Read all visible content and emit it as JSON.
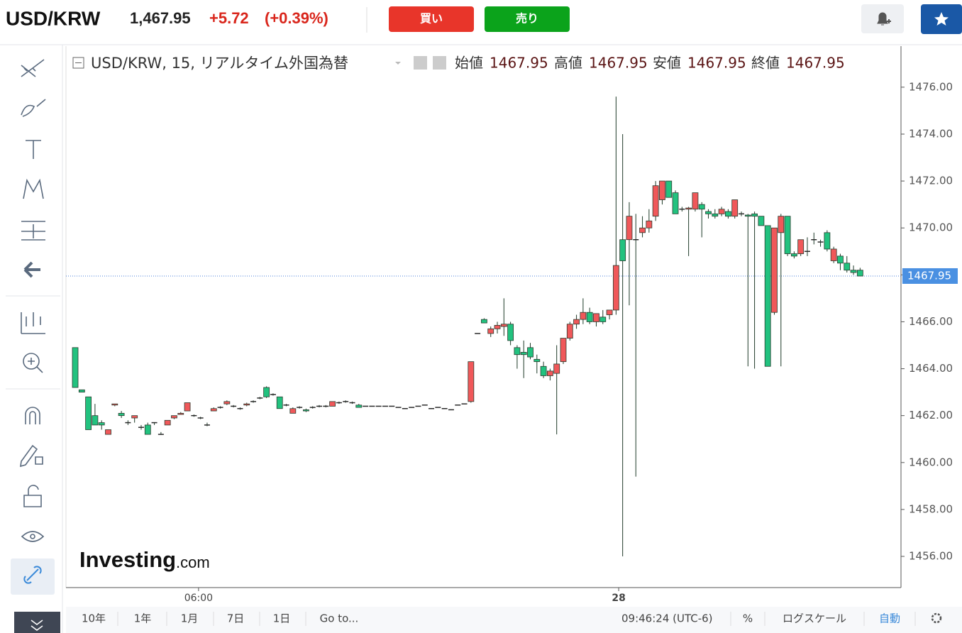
{
  "header": {
    "symbol": "USD/KRW",
    "price": "1,467.95",
    "change": "+5.72",
    "change_pct": "(+0.39%)",
    "buy": "買い",
    "sell": "売り"
  },
  "chart_data": {
    "type": "candlestick",
    "title": "USD/KRW, 15, リアルタイム外国為替",
    "ohlc_legend": [
      {
        "label": "始値",
        "value": 1467.95
      },
      {
        "label": "高値",
        "value": 1467.95
      },
      {
        "label": "安値",
        "value": 1467.95
      },
      {
        "label": "終値",
        "value": 1467.95
      }
    ],
    "open": [
      1464.9,
      1463.1,
      1462.8,
      1462.0,
      1461.7,
      1461.2,
      1462.45,
      1462.1,
      1461.7,
      1461.9,
      1461.5,
      1461.6,
      1461.7,
      1461.2,
      1461.6,
      1461.9,
      1462.05,
      1462.2,
      1462.0,
      1461.9,
      1461.6,
      1462.2,
      1462.35,
      1462.5,
      1462.4,
      1462.3,
      1462.45,
      1462.6,
      1462.75,
      1463.2,
      1462.9,
      1462.8,
      1462.45,
      1462.1,
      1462.35,
      1462.25,
      1462.35,
      1462.4,
      1462.4,
      1462.4,
      1462.55,
      1462.6,
      1462.55,
      1462.45,
      1462.4,
      1462.4,
      1462.4,
      1462.4,
      1462.4,
      1462.35,
      1462.3,
      1462.35,
      1462.4,
      1462.45,
      1462.3,
      1462.35,
      1462.3,
      1462.25,
      1462.45,
      1462.5,
      1462.6,
      1465.5,
      1466.1,
      1465.5,
      1465.7,
      1465.8,
      1465.9,
      1464.9,
      1464.7,
      1464.9,
      1464.4,
      1464.1,
      1463.7,
      1463.8,
      1464.3,
      1465.3,
      1465.9,
      1466.1,
      1466.4,
      1466.0,
      1466.2,
      1466.3,
      1466.5,
      1469.5,
      1469.5,
      1469.5,
      1469.8,
      1470.0,
      1470.5,
      1471.2,
      1472.0,
      1471.5,
      1470.8,
      1470.8,
      1470.8,
      1471.0,
      1470.7,
      1470.6,
      1470.6,
      1470.7,
      1470.5,
      1470.6,
      1470.55,
      1470.6,
      1470.5,
      1470.1,
      1466.4,
      1469.8,
      1470.5,
      1468.9,
      1468.9,
      1469.0,
      1469.5,
      1469.4,
      1469.8,
      1468.6,
      1468.8,
      1468.5,
      1468.2,
      1468.2
    ],
    "high": [
      1464.9,
      1463.1,
      1462.8,
      1462.5,
      1461.8,
      1461.4,
      1462.5,
      1462.2,
      1461.8,
      1462.0,
      1461.6,
      1461.7,
      1461.7,
      1461.3,
      1461.8,
      1462.0,
      1462.15,
      1462.55,
      1462.05,
      1461.95,
      1461.7,
      1462.35,
      1462.4,
      1462.65,
      1462.45,
      1462.35,
      1462.55,
      1462.65,
      1462.8,
      1463.25,
      1462.95,
      1462.8,
      1462.5,
      1462.35,
      1462.4,
      1462.3,
      1462.4,
      1462.45,
      1462.45,
      1462.6,
      1462.6,
      1462.65,
      1462.6,
      1462.5,
      1462.4,
      1462.4,
      1462.4,
      1462.4,
      1462.4,
      1462.35,
      1462.3,
      1462.35,
      1462.4,
      1462.45,
      1462.3,
      1462.35,
      1462.3,
      1462.25,
      1462.45,
      1462.5,
      1464.3,
      1465.5,
      1466.15,
      1465.8,
      1466.0,
      1467.0,
      1466.0,
      1465.0,
      1465.2,
      1465.1,
      1464.6,
      1464.3,
      1464.0,
      1465.0,
      1465.3,
      1466.0,
      1466.3,
      1467.0,
      1466.6,
      1466.3,
      1466.5,
      1466.5,
      1475.6,
      1474.0,
      1471.1,
      1470.6,
      1470.5,
      1470.8,
      1472.0,
      1472.0,
      1472.0,
      1471.6,
      1470.9,
      1470.9,
      1471.5,
      1471.1,
      1470.8,
      1470.8,
      1470.9,
      1470.8,
      1471.2,
      1470.7,
      1470.6,
      1470.7,
      1470.5,
      1470.1,
      1470.0,
      1470.6,
      1470.5,
      1469.0,
      1469.5,
      1469.6,
      1469.8,
      1469.5,
      1469.9,
      1469.2,
      1468.9,
      1468.8,
      1468.4,
      1468.3
    ],
    "low": [
      1463.2,
      1463.0,
      1461.4,
      1461.6,
      1461.4,
      1461.2,
      1462.4,
      1461.9,
      1461.6,
      1461.7,
      1461.4,
      1461.2,
      1461.6,
      1461.2,
      1461.6,
      1461.85,
      1462.05,
      1462.2,
      1461.95,
      1461.85,
      1461.55,
      1462.2,
      1462.3,
      1462.45,
      1462.35,
      1462.25,
      1462.4,
      1462.55,
      1462.7,
      1462.75,
      1462.85,
      1462.3,
      1462.4,
      1462.1,
      1462.3,
      1462.15,
      1462.3,
      1462.35,
      1462.35,
      1462.4,
      1462.5,
      1462.55,
      1462.5,
      1462.35,
      1462.4,
      1462.4,
      1462.4,
      1462.4,
      1462.4,
      1462.35,
      1462.3,
      1462.35,
      1462.4,
      1462.45,
      1462.3,
      1462.35,
      1462.3,
      1462.25,
      1462.45,
      1462.5,
      1462.55,
      1465.5,
      1465.95,
      1465.35,
      1465.5,
      1465.4,
      1465.0,
      1464.0,
      1463.6,
      1464.4,
      1463.8,
      1463.6,
      1463.5,
      1461.2,
      1464.2,
      1465.2,
      1465.7,
      1465.9,
      1465.9,
      1465.8,
      1465.9,
      1466.1,
      1466.3,
      1456.0,
      1466.7,
      1459.4,
      1469.6,
      1469.8,
      1470.3,
      1471.0,
      1471.3,
      1470.6,
      1470.7,
      1468.8,
      1470.7,
      1469.6,
      1470.4,
      1470.4,
      1470.5,
      1470.4,
      1470.4,
      1470.5,
      1464.1,
      1464.0,
      1470.1,
      1464.1,
      1466.3,
      1464.1,
      1468.8,
      1468.7,
      1468.8,
      1468.8,
      1469.3,
      1469.2,
      1469.0,
      1468.5,
      1468.2,
      1468.1,
      1468.0,
      1467.95
    ],
    "close": [
      1463.2,
      1463.0,
      1461.4,
      1461.6,
      1461.6,
      1461.4,
      1462.5,
      1462.0,
      1461.7,
      1462.0,
      1461.5,
      1461.2,
      1461.7,
      1461.2,
      1461.8,
      1462.0,
      1462.1,
      1462.55,
      1462.0,
      1461.9,
      1461.6,
      1462.3,
      1462.35,
      1462.6,
      1462.4,
      1462.3,
      1462.5,
      1462.6,
      1462.75,
      1462.8,
      1462.9,
      1462.3,
      1462.45,
      1462.3,
      1462.35,
      1462.2,
      1462.35,
      1462.4,
      1462.4,
      1462.6,
      1462.55,
      1462.6,
      1462.55,
      1462.35,
      1462.4,
      1462.4,
      1462.4,
      1462.4,
      1462.4,
      1462.35,
      1462.3,
      1462.35,
      1462.4,
      1462.45,
      1462.3,
      1462.35,
      1462.3,
      1462.25,
      1462.45,
      1462.5,
      1464.3,
      1465.5,
      1465.95,
      1465.7,
      1465.85,
      1465.9,
      1465.2,
      1464.6,
      1464.6,
      1464.5,
      1464.3,
      1463.7,
      1463.9,
      1464.2,
      1465.3,
      1465.9,
      1466.1,
      1466.4,
      1466.0,
      1466.35,
      1466.0,
      1466.5,
      1468.4,
      1468.6,
      1470.5,
      1469.5,
      1470.0,
      1470.3,
      1471.8,
      1472.0,
      1471.3,
      1470.6,
      1470.8,
      1470.85,
      1471.5,
      1470.8,
      1470.6,
      1470.5,
      1470.8,
      1470.5,
      1471.2,
      1470.6,
      1470.5,
      1470.5,
      1470.1,
      1464.1,
      1470.0,
      1470.5,
      1468.9,
      1468.8,
      1469.5,
      1469.0,
      1469.5,
      1469.4,
      1469.1,
      1469.1,
      1468.5,
      1468.2,
      1468.1,
      1467.95
    ],
    "up_color": "#f0585a",
    "down_color": "#22c27f",
    "last_price": 1467.95,
    "ylim": [
      1454.67,
      1477.75
    ],
    "yticks": [
      {
        "value": 1456,
        "label": "1456.00"
      },
      {
        "value": 1458,
        "label": "1458.00"
      },
      {
        "value": 1460,
        "label": "1460.00"
      },
      {
        "value": 1462,
        "label": "1462.00"
      },
      {
        "value": 1464,
        "label": "1464.00"
      },
      {
        "value": 1466,
        "label": "1466.00"
      },
      {
        "value": 1468,
        "label": "1468.00"
      },
      {
        "value": 1470,
        "label": "1470.00"
      },
      {
        "value": 1472,
        "label": "1472.00"
      },
      {
        "value": 1474,
        "label": "1474.00"
      },
      {
        "value": 1476,
        "label": "1476.00"
      }
    ],
    "xlim": [
      -1.4,
      125.2
    ],
    "xticks": [
      {
        "value": 18.7,
        "label": "06:00"
      },
      {
        "value": 82.4,
        "label": "28"
      }
    ],
    "watermark": "Investing",
    "watermark_suffix": ".com"
  },
  "footer": {
    "ranges": [
      "10年",
      "1年",
      "1月",
      "7日",
      "1日",
      "Go to..."
    ],
    "time": "09:46:24 (UTC-6)",
    "percent": "%",
    "log": "ログスケール",
    "auto": "自動"
  }
}
